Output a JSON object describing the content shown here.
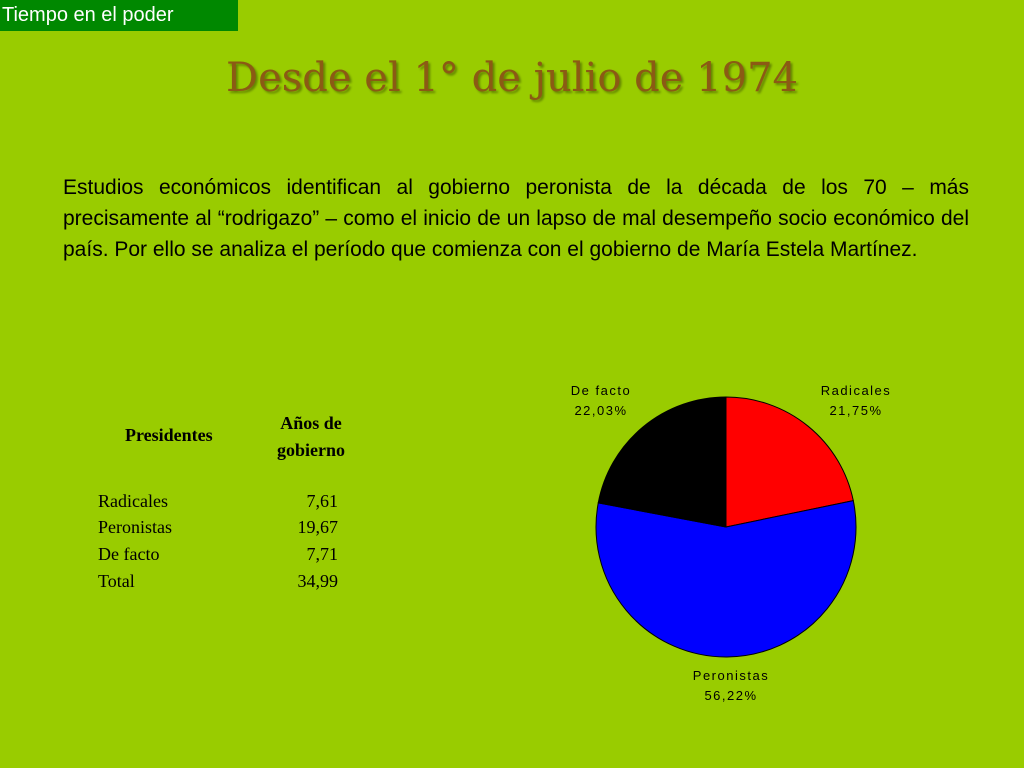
{
  "tag": "Tiempo en el poder",
  "title": "Desde el 1° de julio de 1974",
  "intro": "Estudios económicos identifican al gobierno peronista de la década de los 70 – más precisamente al “rodrigazo” – como el inicio de un lapso de mal desempeño socio económico del país. Por ello se analiza el período que comienza con el gobierno de María Estela Martínez.",
  "table": {
    "header_presidentes": "Presidentes",
    "header_anos_line1": "Años de",
    "header_anos_line2": "gobierno",
    "rows": [
      {
        "label": "Radicales",
        "value": "7,61"
      },
      {
        "label": "Peronistas",
        "value": "19,67"
      },
      {
        "label": "De facto",
        "value": "7,71"
      },
      {
        "label": "Total",
        "value": "34,99"
      }
    ]
  },
  "chart_data": {
    "type": "pie",
    "title": "",
    "slices": [
      {
        "name": "Radicales",
        "value": 21.75,
        "label": "21,75%",
        "color": "#ff0000"
      },
      {
        "name": "Peronistas",
        "value": 56.22,
        "label": "56,22%",
        "color": "#0000ff"
      },
      {
        "name": "De facto",
        "value": 22.03,
        "label": "22,03%",
        "color": "#000000"
      }
    ],
    "start": "12 o'clock",
    "direction": "clockwise",
    "legend": "none",
    "labels": "outside"
  }
}
